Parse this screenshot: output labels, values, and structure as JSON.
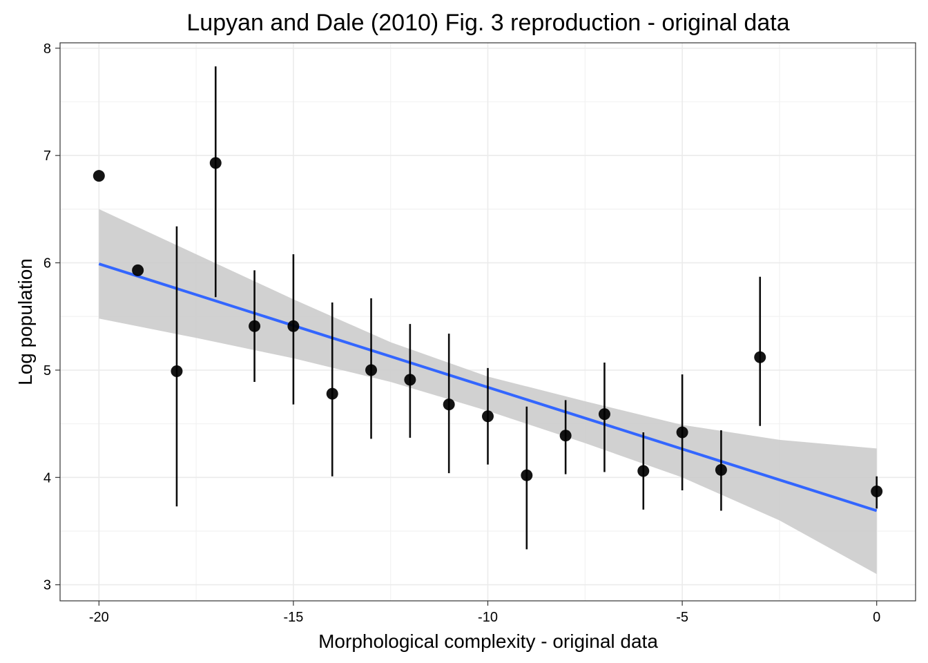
{
  "chart_data": {
    "type": "scatter",
    "title": "Lupyan and Dale (2010) Fig. 3 reproduction - original data",
    "xlabel": "Morphological complexity - original data",
    "ylabel": "Log population",
    "xlim": [
      -21,
      1
    ],
    "ylim": [
      2.85,
      8.05
    ],
    "x_ticks": [
      -20,
      -15,
      -10,
      -5,
      0
    ],
    "y_ticks": [
      3,
      4,
      5,
      6,
      7,
      8
    ],
    "grid": true,
    "points": [
      {
        "x": -20,
        "y": 6.81
      },
      {
        "x": -19,
        "y": 5.93,
        "ymin": 5.93,
        "ymax": 5.93
      },
      {
        "x": -18,
        "y": 4.99,
        "ymin": 3.73,
        "ymax": 6.34
      },
      {
        "x": -17,
        "y": 6.93,
        "ymin": 5.68,
        "ymax": 7.83
      },
      {
        "x": -16,
        "y": 5.41,
        "ymin": 4.89,
        "ymax": 5.93
      },
      {
        "x": -15,
        "y": 5.41,
        "ymin": 4.68,
        "ymax": 6.08
      },
      {
        "x": -14,
        "y": 4.78,
        "ymin": 4.01,
        "ymax": 5.63
      },
      {
        "x": -13,
        "y": 5.0,
        "ymin": 4.36,
        "ymax": 5.67
      },
      {
        "x": -12,
        "y": 4.91,
        "ymin": 4.37,
        "ymax": 5.43
      },
      {
        "x": -11,
        "y": 4.68,
        "ymin": 4.04,
        "ymax": 5.34
      },
      {
        "x": -10,
        "y": 4.57,
        "ymin": 4.12,
        "ymax": 5.02
      },
      {
        "x": -9,
        "y": 4.02,
        "ymin": 3.33,
        "ymax": 4.66
      },
      {
        "x": -8,
        "y": 4.39,
        "ymin": 4.03,
        "ymax": 4.72
      },
      {
        "x": -7,
        "y": 4.59,
        "ymin": 4.05,
        "ymax": 5.07
      },
      {
        "x": -6,
        "y": 4.06,
        "ymin": 3.7,
        "ymax": 4.42
      },
      {
        "x": -5,
        "y": 4.42,
        "ymin": 3.88,
        "ymax": 4.96
      },
      {
        "x": -4,
        "y": 4.07,
        "ymin": 3.69,
        "ymax": 4.44
      },
      {
        "x": -3,
        "y": 5.12,
        "ymin": 4.48,
        "ymax": 5.87
      },
      {
        "x": 0,
        "y": 3.87,
        "ymin": 3.71,
        "ymax": 4.01
      }
    ],
    "fit_line": {
      "x": [
        -20,
        0
      ],
      "y": [
        5.99,
        3.69
      ],
      "color": "#3366ff"
    },
    "confidence_band": {
      "x": [
        -20,
        -17.5,
        -15,
        -12.5,
        -10,
        -7.5,
        -5,
        -2.5,
        0
      ],
      "lower": [
        5.48,
        5.3,
        5.11,
        4.89,
        4.62,
        4.32,
        4.0,
        3.6,
        3.1
      ],
      "upper": [
        6.5,
        6.08,
        5.66,
        5.26,
        4.94,
        4.71,
        4.49,
        4.35,
        4.27
      ],
      "color": "#cccccc"
    },
    "point_color": "#000000",
    "errorbar_color": "#000000"
  }
}
